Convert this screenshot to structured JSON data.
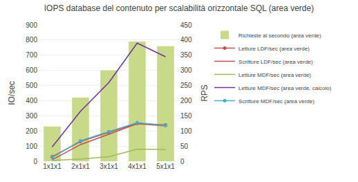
{
  "chart_data": {
    "type": "bar",
    "title": "IOPS database del contenuto per scalabilità orizzontale SQL (area verde)",
    "categories": [
      "1x1x1",
      "2x1x1",
      "3x1x1",
      "4x1x1",
      "5x1x1"
    ],
    "series": [
      {
        "name": "Richieste al secondo (area verde)",
        "type": "bar",
        "color": "#c8d98a",
        "values": [
          230,
          420,
          600,
          790,
          760
        ]
      },
      {
        "name": "Letture LDF/sec (area verde)",
        "type": "line",
        "color": "#c0504d",
        "marker": "circle",
        "values": [
          30,
          130,
          190,
          250,
          240
        ]
      },
      {
        "name": "Scritture LDF/sec (area verde)",
        "type": "line",
        "color": "#c0504d",
        "values": [
          10,
          110,
          178,
          248,
          233
        ]
      },
      {
        "name": "Letture MDF/sec (area verde)",
        "type": "line",
        "color": "#9bbb59",
        "values": [
          5,
          15,
          30,
          80,
          78
        ]
      },
      {
        "name": "Letture MDF/sec (area verde, calcolo)",
        "type": "line",
        "color": "#7030a0",
        "values": [
          95,
          330,
          520,
          780,
          690
        ]
      },
      {
        "name": "Scritture MDF/sec (area verde)",
        "type": "line",
        "color": "#4bacc6",
        "marker": "circle",
        "values": [
          25,
          135,
          195,
          255,
          235
        ]
      }
    ],
    "ylabel": "IO/sec",
    "y2label": "RPS",
    "ylim": [
      0,
      900
    ],
    "yticks": [
      0,
      100,
      200,
      300,
      400,
      500,
      600,
      700,
      800,
      900
    ],
    "y2lim": [
      0,
      450
    ],
    "y2ticks": [
      0,
      50,
      100,
      150,
      200,
      250,
      300,
      350,
      400,
      450
    ],
    "grid": true,
    "legend": "right"
  }
}
